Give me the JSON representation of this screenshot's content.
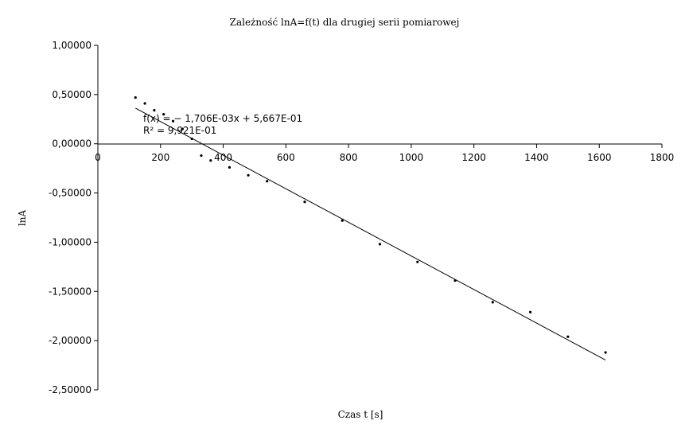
{
  "chart_data": {
    "type": "scatter",
    "title": "Zależność lnA=f(t) dla drugiej serii pomiarowej",
    "xlabel": "Czas t [s]",
    "ylabel": "lnA",
    "xlim": [
      0,
      1800
    ],
    "ylim": [
      -2.5,
      1.0
    ],
    "x_ticks": [
      0,
      200,
      400,
      600,
      800,
      1000,
      1200,
      1400,
      1600,
      1800
    ],
    "x_tick_labels": [
      "0",
      "200",
      "400",
      "600",
      "800",
      "1000",
      "1200",
      "1400",
      "1600",
      "1800"
    ],
    "y_ticks": [
      1.0,
      0.5,
      0.0,
      -0.5,
      -1.0,
      -1.5,
      -2.0,
      -2.5
    ],
    "y_tick_labels": [
      "1,00000",
      "0,50000",
      "0,00000",
      "-0,50000",
      "-1,00000",
      "-1,50000",
      "-2,00000",
      "-2,50000"
    ],
    "grid": false,
    "points": [
      {
        "x": 120,
        "y": 0.47
      },
      {
        "x": 150,
        "y": 0.41
      },
      {
        "x": 180,
        "y": 0.34
      },
      {
        "x": 210,
        "y": 0.3
      },
      {
        "x": 240,
        "y": 0.23
      },
      {
        "x": 270,
        "y": 0.15
      },
      {
        "x": 300,
        "y": 0.05
      },
      {
        "x": 330,
        "y": -0.12
      },
      {
        "x": 360,
        "y": -0.17
      },
      {
        "x": 420,
        "y": -0.24
      },
      {
        "x": 480,
        "y": -0.32
      },
      {
        "x": 540,
        "y": -0.38
      },
      {
        "x": 660,
        "y": -0.59
      },
      {
        "x": 780,
        "y": -0.78
      },
      {
        "x": 900,
        "y": -1.02
      },
      {
        "x": 1020,
        "y": -1.2
      },
      {
        "x": 1140,
        "y": -1.39
      },
      {
        "x": 1260,
        "y": -1.61
      },
      {
        "x": 1380,
        "y": -1.71
      },
      {
        "x": 1500,
        "y": -1.96
      },
      {
        "x": 1620,
        "y": -2.12
      }
    ],
    "trendline": {
      "slope": -0.001706,
      "intercept": 0.5667,
      "x_range": [
        120,
        1620
      ]
    },
    "annotations": [
      "f(x) = − 1,706E-03x + 5,667E-01",
      "R² = 9,921E-01"
    ]
  }
}
